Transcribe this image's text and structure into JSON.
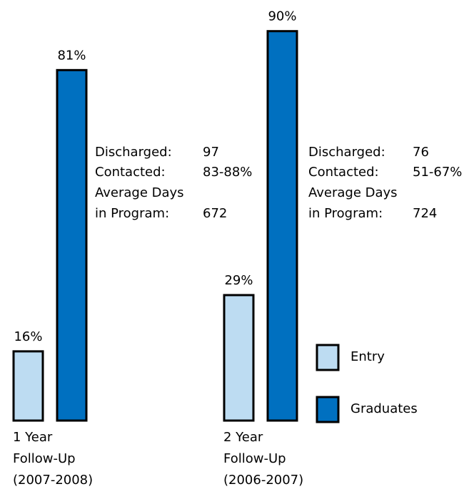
{
  "chart_data": {
    "type": "bar",
    "categories": [
      [
        "1 Year",
        "Follow-Up",
        "(2007-2008)"
      ],
      [
        "2 Year",
        "Follow-Up",
        "(2006-2007)"
      ]
    ],
    "series": [
      {
        "name": "Entry",
        "color": "#bddcf2",
        "values": [
          16,
          29
        ],
        "value_labels": [
          "16%",
          "29%"
        ]
      },
      {
        "name": "Graduates",
        "color": "#0070c0",
        "values": [
          81,
          90
        ],
        "value_labels": [
          "81%",
          "90%"
        ]
      }
    ],
    "annotations": [
      [
        [
          "Discharged:",
          "97"
        ],
        [
          "Contacted:",
          "83-88%"
        ],
        [
          "Average Days"
        ],
        [
          "in Program:",
          "672"
        ]
      ],
      [
        [
          "Discharged:",
          "76"
        ],
        [
          "Contacted:",
          "51-67%"
        ],
        [
          "Average Days"
        ],
        [
          "in Program:",
          "724"
        ]
      ]
    ]
  }
}
